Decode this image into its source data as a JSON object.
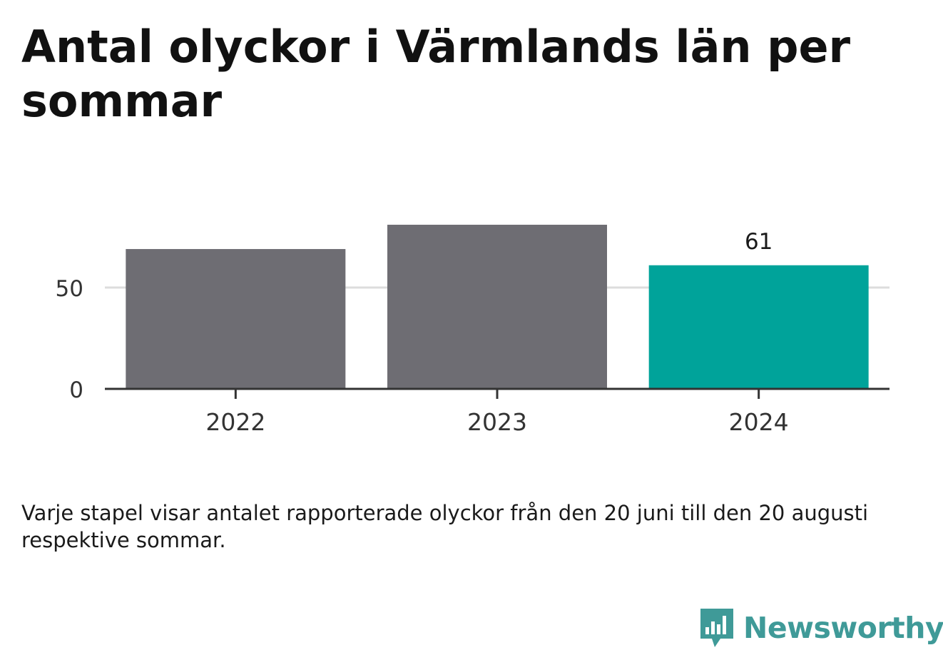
{
  "title": "Antal olyckor i Värmlands län per sommar",
  "note": "Varje stapel visar antalet rapporterade olyckor från den 20 juni till den 20 augusti respektive sommar.",
  "brand": "Newsworthy",
  "colors": {
    "bar_default": "#6e6d73",
    "bar_highlight": "#00a39a",
    "grid": "#dddddd",
    "axis": "#333333",
    "logo": "#3f9a98"
  },
  "chart_data": {
    "type": "bar",
    "categories": [
      "2022",
      "2023",
      "2024"
    ],
    "values": [
      69,
      81,
      61
    ],
    "highlight_index": 2,
    "value_labels": [
      "",
      "",
      "61"
    ],
    "yticks": [
      0,
      50
    ],
    "ylim": [
      0,
      100
    ],
    "xlabel": "",
    "ylabel": "",
    "grid": true
  }
}
